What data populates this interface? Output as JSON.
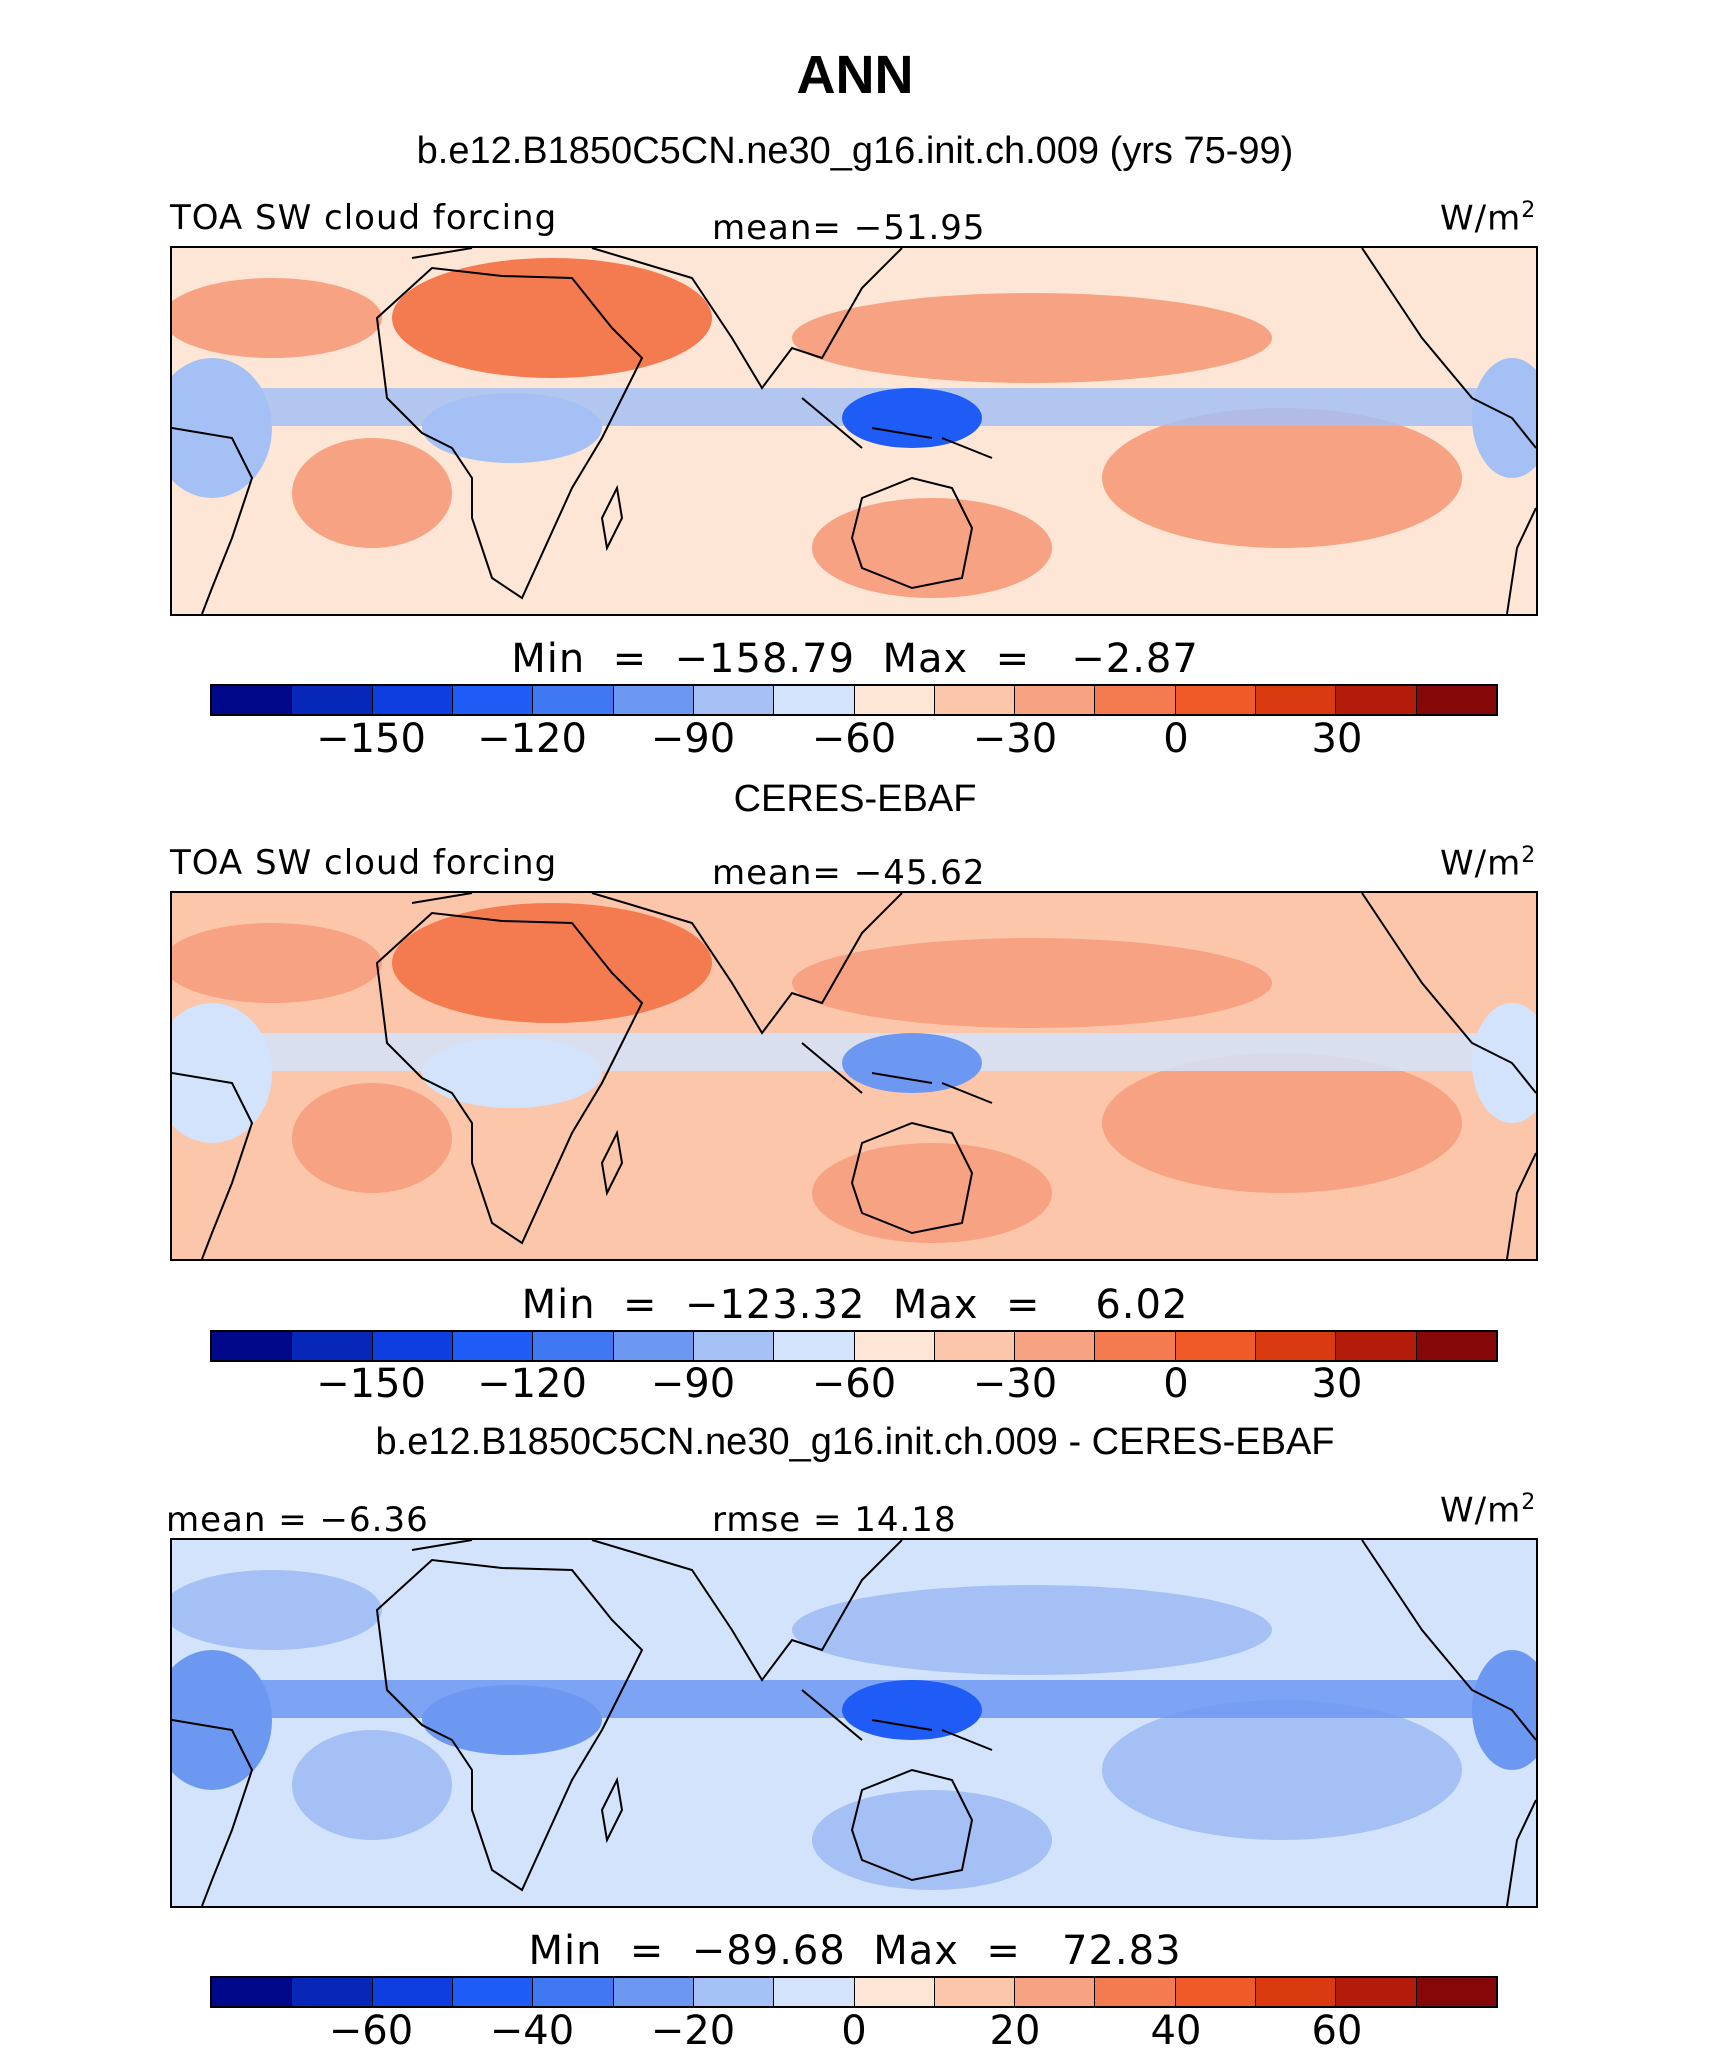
{
  "title": "ANN",
  "colors": [
    "#00088a",
    "#0627b8",
    "#0f3ee0",
    "#1f5cf5",
    "#3f78f2",
    "#6d98f2",
    "#a5c0f5",
    "#d3e3fb",
    "#fde6d5",
    "#fcc6ab",
    "#f7a282",
    "#f47a50",
    "#f05a28",
    "#da3a10",
    "#b31c0a",
    "#850707"
  ],
  "panels": [
    {
      "subtitle": "b.e12.B1850C5CN.ne30_g16.init.ch.009 (yrs 75-99)",
      "left_label": "TOA SW cloud forcing",
      "center_label": "mean=  −51.95",
      "units_base": "W/m",
      "units_exp": "2",
      "minmax": "Min  =  −158.79  Max  =   −2.87",
      "ticks": [
        "−150",
        "−120",
        "−90",
        "−60",
        "−30",
        "0",
        "30"
      ],
      "map": {
        "base": "#fde6d5",
        "land": "#f7a282",
        "africa_n": "#f47a50",
        "tropics": "#a5c0f5",
        "deep": "#1f5cf5"
      }
    },
    {
      "subtitle": "CERES-EBAF",
      "left_label": "TOA SW cloud forcing",
      "center_label": "mean=  −45.62",
      "units_base": "W/m",
      "units_exp": "2",
      "minmax": "Min  =  −123.32  Max  =    6.02",
      "ticks": [
        "−150",
        "−120",
        "−90",
        "−60",
        "−30",
        "0",
        "30"
      ],
      "map": {
        "base": "#fcc6ab",
        "land": "#f7a282",
        "africa_n": "#f47a50",
        "tropics": "#d3e3fb",
        "deep": "#6d98f2"
      }
    },
    {
      "subtitle": "b.e12.B1850C5CN.ne30_g16.init.ch.009 - CERES-EBAF",
      "left_label": "mean  =   −6.36",
      "center_label": "rmse  =   14.18",
      "units_base": "W/m",
      "units_exp": "2",
      "minmax": "Min  =  −89.68  Max  =   72.83",
      "ticks": [
        "−60",
        "−40",
        "−20",
        "0",
        "20",
        "40",
        "60"
      ],
      "map": {
        "base": "#d3e3fb",
        "land": "#a5c0f5",
        "africa_n": "#d3e3fb",
        "tropics": "#6d98f2",
        "deep": "#1f5cf5"
      }
    }
  ]
}
